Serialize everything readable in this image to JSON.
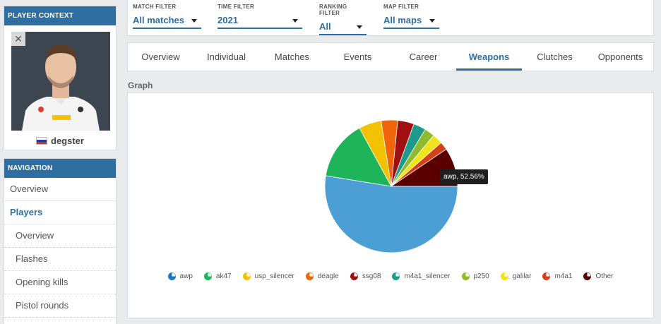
{
  "player_context": {
    "title": "PLAYER CONTEXT",
    "player_name": "degster"
  },
  "navigation": {
    "title": "NAVIGATION",
    "items": [
      {
        "label": "Overview",
        "type": "top",
        "active": false
      },
      {
        "label": "Players",
        "type": "top",
        "active": true
      },
      {
        "label": "Overview",
        "type": "sub",
        "active": false
      },
      {
        "label": "Flashes",
        "type": "sub",
        "active": false
      },
      {
        "label": "Opening kills",
        "type": "sub",
        "active": false
      },
      {
        "label": "Pistol rounds",
        "type": "sub",
        "active": false
      }
    ]
  },
  "filters": [
    {
      "label": "MATCH FILTER",
      "value": "All matches"
    },
    {
      "label": "TIME FILTER",
      "value": "2021"
    },
    {
      "label": "RANKING FILTER",
      "value": "All"
    },
    {
      "label": "MAP FILTER",
      "value": "All maps"
    }
  ],
  "tabs": [
    {
      "label": "Overview",
      "active": false
    },
    {
      "label": "Individual",
      "active": false
    },
    {
      "label": "Matches",
      "active": false
    },
    {
      "label": "Events",
      "active": false
    },
    {
      "label": "Career",
      "active": false
    },
    {
      "label": "Weapons",
      "active": true
    },
    {
      "label": "Clutches",
      "active": false
    },
    {
      "label": "Opponents",
      "active": false
    }
  ],
  "graph_title": "Graph",
  "tooltip": "awp, 52.56%",
  "colors": {
    "accent": "#2f6ea0"
  },
  "chart_data": {
    "type": "pie",
    "labels": [
      "awp",
      "ak47",
      "usp_silencer",
      "deagle",
      "ssg08",
      "m4a1_silencer",
      "p250",
      "galilar",
      "m4a1",
      "Other"
    ],
    "values": [
      52.56,
      14.5,
      5.5,
      4.0,
      4.0,
      3.0,
      2.5,
      2.5,
      2.0,
      9.44
    ],
    "colors": [
      "#4b9fd5",
      "#1eb55a",
      "#f2c200",
      "#f0650a",
      "#a01010",
      "#1d9a8c",
      "#8fba2c",
      "#f0e31b",
      "#d4401a",
      "#5a0000"
    ],
    "legend_colors": [
      "#1f78c1",
      "#1eb55a",
      "#f2c200",
      "#f0650a",
      "#a01010",
      "#1d9a8c",
      "#8fba2c",
      "#f0e31b",
      "#d4401a",
      "#5a0000"
    ],
    "legend_position": "bottom"
  }
}
